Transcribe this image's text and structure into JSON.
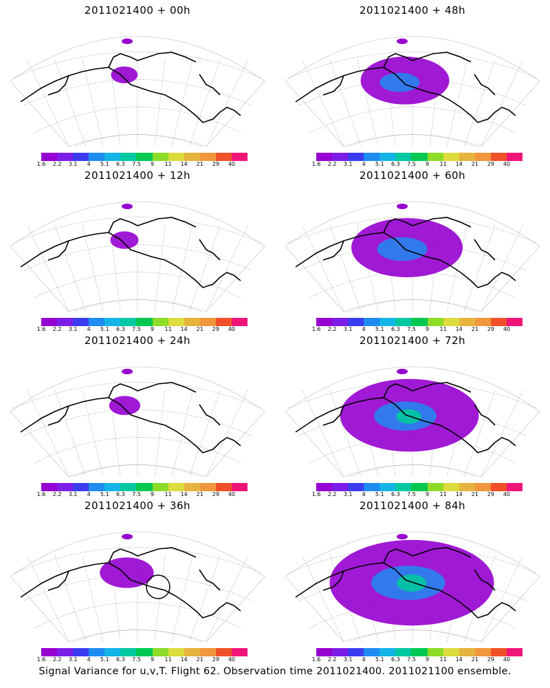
{
  "panels": [
    {
      "title": "2011021400 + 00h",
      "intensity": 0.04
    },
    {
      "title": "2011021400 + 48h",
      "intensity": 0.45
    },
    {
      "title": "2011021400 + 12h",
      "intensity": 0.05
    },
    {
      "title": "2011021400 + 60h",
      "intensity": 0.6
    },
    {
      "title": "2011021400 + 24h",
      "intensity": 0.07
    },
    {
      "title": "2011021400 + 72h",
      "intensity": 0.78
    },
    {
      "title": "2011021400 + 36h",
      "intensity": 0.22
    },
    {
      "title": "2011021400 + 84h",
      "intensity": 0.95
    }
  ],
  "colorbar": {
    "colors": [
      "#9600d0",
      "#7c1ee8",
      "#3c3cf0",
      "#1e8cf0",
      "#14b4e6",
      "#00c8a0",
      "#00c850",
      "#8cdc28",
      "#dcdc3c",
      "#e6b43c",
      "#f0963c",
      "#f05028",
      "#f01478"
    ],
    "labels": [
      "1.6",
      "2.2",
      "3.1",
      "4",
      "5.1",
      "6.3",
      "7.5",
      "9",
      "11",
      "14",
      "21",
      "29",
      "40"
    ]
  },
  "caption": "Signal Variance for u,v,T. Flight 62. Observation time 2011021400. 2011021100 ensemble."
}
